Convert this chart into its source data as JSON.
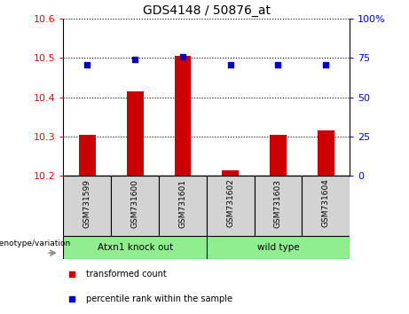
{
  "title": "GDS4148 / 50876_at",
  "samples": [
    "GSM731599",
    "GSM731600",
    "GSM731601",
    "GSM731602",
    "GSM731603",
    "GSM731604"
  ],
  "bar_values": [
    10.305,
    10.415,
    10.505,
    10.215,
    10.305,
    10.315
  ],
  "bar_bottom": 10.2,
  "dot_values": [
    71,
    74,
    76,
    71,
    71,
    71
  ],
  "ylim_left": [
    10.2,
    10.6
  ],
  "ylim_right": [
    0,
    100
  ],
  "yticks_left": [
    10.2,
    10.3,
    10.4,
    10.5,
    10.6
  ],
  "yticks_right": [
    0,
    25,
    50,
    75,
    100
  ],
  "ytick_right_labels": [
    "0",
    "25",
    "50",
    "75",
    "100%"
  ],
  "bar_color": "#cc0000",
  "dot_color": "#0000cc",
  "group1_label": "Atxn1 knock out",
  "group2_label": "wild type",
  "group_bg_color": "#90ee90",
  "sample_bg_color": "#d3d3d3",
  "legend_bar_label": "transformed count",
  "legend_dot_label": "percentile rank within the sample",
  "genotype_label": "genotype/variation"
}
